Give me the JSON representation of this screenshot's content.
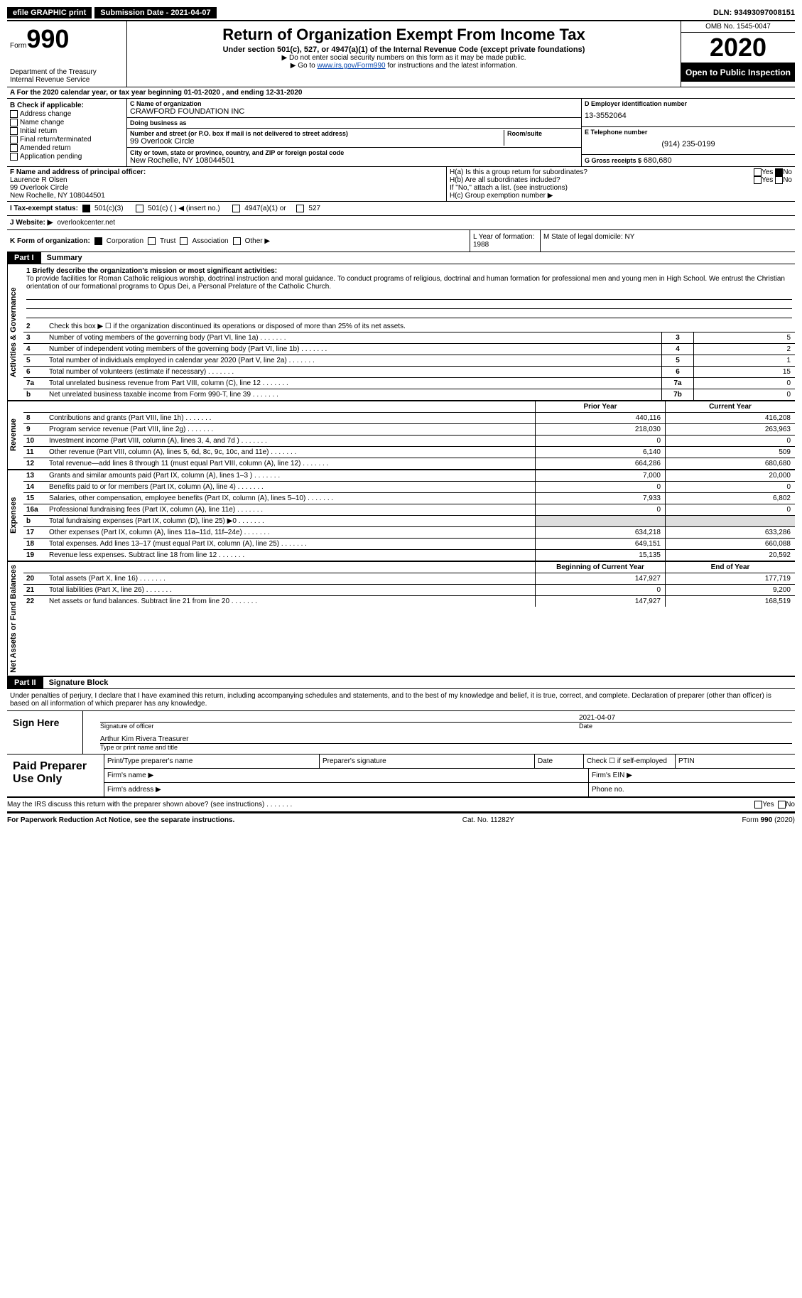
{
  "top": {
    "efile": "efile GRAPHIC print",
    "submission": "Submission Date - 2021-04-07",
    "dln": "DLN: 93493097008151"
  },
  "header": {
    "form_label": "Form",
    "form_num": "990",
    "dept": "Department of the Treasury\nInternal Revenue Service",
    "title": "Return of Organization Exempt From Income Tax",
    "sub": "Under section 501(c), 527, or 4947(a)(1) of the Internal Revenue Code (except private foundations)",
    "instr1": "▶ Do not enter social security numbers on this form as it may be made public.",
    "instr2_pre": "▶ Go to ",
    "instr2_link": "www.irs.gov/Form990",
    "instr2_post": " for instructions and the latest information.",
    "omb": "OMB No. 1545-0047",
    "year": "2020",
    "open": "Open to Public Inspection"
  },
  "lineA": "A For the 2020 calendar year, or tax year beginning 01-01-2020    , and ending 12-31-2020",
  "colB": {
    "title": "B Check if applicable:",
    "items": [
      "Address change",
      "Name change",
      "Initial return",
      "Final return/terminated",
      "Amended return",
      "Application pending"
    ]
  },
  "colC": {
    "name_lbl": "C Name of organization",
    "name": "CRAWFORD FOUNDATION INC",
    "dba_lbl": "Doing business as",
    "dba": "",
    "street_lbl": "Number and street (or P.O. box if mail is not delivered to street address)",
    "street_room": "Room/suite",
    "street": "99 Overlook Circle",
    "city_lbl": "City or town, state or province, country, and ZIP or foreign postal code",
    "city": "New Rochelle, NY  108044501"
  },
  "colD": {
    "ein_lbl": "D Employer identification number",
    "ein": "13-3552064",
    "phone_lbl": "E Telephone number",
    "phone": "(914) 235-0199",
    "gross_lbl": "G Gross receipts $",
    "gross": "680,680"
  },
  "rowF": {
    "lbl": "F Name and address of principal officer:",
    "name": "Laurence R Olsen",
    "addr1": "99 Overlook Circle",
    "addr2": "New Rochelle, NY  108044501",
    "ha": "H(a)  Is this a group return for subordinates?",
    "hb": "H(b)  Are all subordinates included?",
    "hnote": "If \"No,\" attach a list. (see instructions)",
    "hc": "H(c)  Group exemption number ▶",
    "yes": "Yes",
    "no": "No"
  },
  "status": {
    "i": "I  Tax-exempt status:",
    "a": "501(c)(3)",
    "b": "501(c) (   ) ◀ (insert no.)",
    "c": "4947(a)(1) or",
    "d": "527"
  },
  "website": {
    "lbl": "J  Website: ▶",
    "val": "overlookcenter.net"
  },
  "kform": {
    "lbl": "K Form of organization:",
    "a": "Corporation",
    "b": "Trust",
    "c": "Association",
    "d": "Other ▶"
  },
  "lm": {
    "l": "L Year of formation: 1988",
    "m": "M State of legal domicile: NY"
  },
  "part1": {
    "tag": "Part I",
    "title": "Summary"
  },
  "section1": {
    "vlabel": "Activities & Governance",
    "q1_lbl": "1  Briefly describe the organization's mission or most significant activities:",
    "q1_text": "To provide facilities for Roman Catholic religious worship, doctrinal instruction and moral guidance. To conduct programs of religious, doctrinal and human formation for professional men and young men in High School. We entrust the Christian orientation of our formational programs to Opus Dei, a Personal Prelature of the Catholic Church.",
    "q2": "Check this box ▶ ☐  if the organization discontinued its operations or disposed of more than 25% of its net assets.",
    "rows": [
      {
        "n": "3",
        "d": "Number of voting members of the governing body (Part VI, line 1a)",
        "box": "3",
        "v": "5"
      },
      {
        "n": "4",
        "d": "Number of independent voting members of the governing body (Part VI, line 1b)",
        "box": "4",
        "v": "2"
      },
      {
        "n": "5",
        "d": "Total number of individuals employed in calendar year 2020 (Part V, line 2a)",
        "box": "5",
        "v": "1"
      },
      {
        "n": "6",
        "d": "Total number of volunteers (estimate if necessary)",
        "box": "6",
        "v": "15"
      },
      {
        "n": "7a",
        "d": "Total unrelated business revenue from Part VIII, column (C), line 12",
        "box": "7a",
        "v": "0"
      },
      {
        "n": "b",
        "d": "Net unrelated business taxable income from Form 990-T, line 39",
        "box": "7b",
        "v": "0"
      }
    ]
  },
  "section2": {
    "vlabel": "Revenue",
    "hprior": "Prior Year",
    "hcurr": "Current Year",
    "rows": [
      {
        "n": "8",
        "d": "Contributions and grants (Part VIII, line 1h)",
        "p": "440,116",
        "c": "416,208"
      },
      {
        "n": "9",
        "d": "Program service revenue (Part VIII, line 2g)",
        "p": "218,030",
        "c": "263,963"
      },
      {
        "n": "10",
        "d": "Investment income (Part VIII, column (A), lines 3, 4, and 7d )",
        "p": "0",
        "c": "0"
      },
      {
        "n": "11",
        "d": "Other revenue (Part VIII, column (A), lines 5, 6d, 8c, 9c, 10c, and 11e)",
        "p": "6,140",
        "c": "509"
      },
      {
        "n": "12",
        "d": "Total revenue—add lines 8 through 11 (must equal Part VIII, column (A), line 12)",
        "p": "664,286",
        "c": "680,680"
      }
    ]
  },
  "section3": {
    "vlabel": "Expenses",
    "rows": [
      {
        "n": "13",
        "d": "Grants and similar amounts paid (Part IX, column (A), lines 1–3 )",
        "p": "7,000",
        "c": "20,000"
      },
      {
        "n": "14",
        "d": "Benefits paid to or for members (Part IX, column (A), line 4)",
        "p": "0",
        "c": "0"
      },
      {
        "n": "15",
        "d": "Salaries, other compensation, employee benefits (Part IX, column (A), lines 5–10)",
        "p": "7,933",
        "c": "6,802"
      },
      {
        "n": "16a",
        "d": "Professional fundraising fees (Part IX, column (A), line 11e)",
        "p": "0",
        "c": "0"
      },
      {
        "n": "b",
        "d": "Total fundraising expenses (Part IX, column (D), line 25) ▶0",
        "p": "",
        "c": "",
        "shade": true
      },
      {
        "n": "17",
        "d": "Other expenses (Part IX, column (A), lines 11a–11d, 11f–24e)",
        "p": "634,218",
        "c": "633,286"
      },
      {
        "n": "18",
        "d": "Total expenses. Add lines 13–17 (must equal Part IX, column (A), line 25)",
        "p": "649,151",
        "c": "660,088"
      },
      {
        "n": "19",
        "d": "Revenue less expenses. Subtract line 18 from line 12",
        "p": "15,135",
        "c": "20,592"
      }
    ]
  },
  "section4": {
    "vlabel": "Net Assets or Fund Balances",
    "hprior": "Beginning of Current Year",
    "hcurr": "End of Year",
    "rows": [
      {
        "n": "20",
        "d": "Total assets (Part X, line 16)",
        "p": "147,927",
        "c": "177,719"
      },
      {
        "n": "21",
        "d": "Total liabilities (Part X, line 26)",
        "p": "0",
        "c": "9,200"
      },
      {
        "n": "22",
        "d": "Net assets or fund balances. Subtract line 21 from line 20",
        "p": "147,927",
        "c": "168,519"
      }
    ]
  },
  "part2": {
    "tag": "Part II",
    "title": "Signature Block"
  },
  "sig": {
    "perjury": "Under penalties of perjury, I declare that I have examined this return, including accompanying schedules and statements, and to the best of my knowledge and belief, it is true, correct, and complete. Declaration of preparer (other than officer) is based on all information of which preparer has any knowledge.",
    "sign_here": "Sign Here",
    "sig_officer": "Signature of officer",
    "date": "Date",
    "date_val": "2021-04-07",
    "name": "Arthur Kim Rivera  Treasurer",
    "name_cap": "Type or print name and title"
  },
  "prep": {
    "title": "Paid Preparer Use Only",
    "h1": "Print/Type preparer's name",
    "h2": "Preparer's signature",
    "h3": "Date",
    "h4": "Check ☐ if self-employed",
    "h5": "PTIN",
    "firm_name": "Firm's name  ▶",
    "firm_ein": "Firm's EIN ▶",
    "firm_addr": "Firm's address ▶",
    "phone": "Phone no."
  },
  "discuss": {
    "q": "May the IRS discuss this return with the preparer shown above? (see instructions)",
    "yes": "Yes",
    "no": "No"
  },
  "footer": {
    "left": "For Paperwork Reduction Act Notice, see the separate instructions.",
    "mid": "Cat. No. 11282Y",
    "right": "Form 990 (2020)"
  }
}
